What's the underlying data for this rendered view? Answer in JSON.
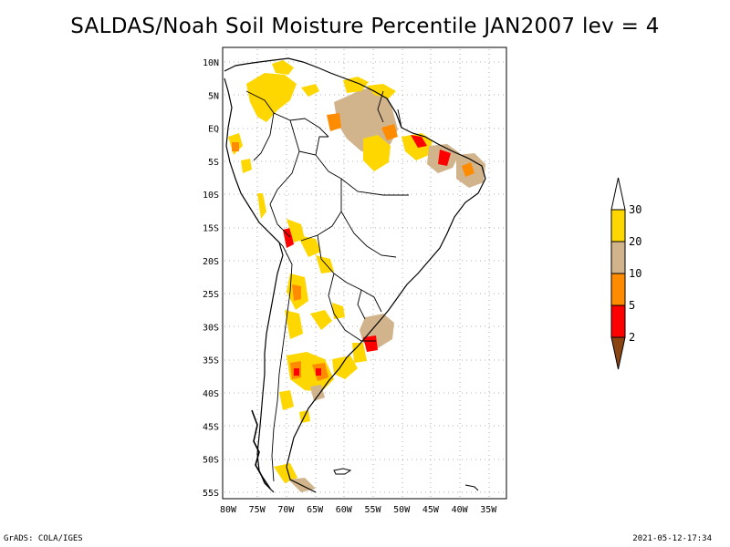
{
  "title": "SALDAS/Noah Soil Moisture Percentile JAN2007 lev = 4",
  "lat_labels": [
    "10N",
    "5N",
    "EQ",
    "5S",
    "10S",
    "15S",
    "20S",
    "25S",
    "30S",
    "35S",
    "40S",
    "45S",
    "50S",
    "55S"
  ],
  "lon_labels": [
    "80W",
    "75W",
    "70W",
    "65W",
    "60W",
    "55W",
    "50W",
    "45W",
    "40W",
    "35W"
  ],
  "legend": {
    "levels": [
      "2",
      "5",
      "10",
      "20",
      "30"
    ],
    "colors": [
      "#8b4513",
      "#ff0000",
      "#ff8c00",
      "#d2b48c",
      "#ffd700",
      "#ffffff"
    ]
  },
  "colors": {
    "yellow": "#ffd700",
    "tan": "#d2b48c",
    "orange": "#ff8c00",
    "red": "#ff0000",
    "brown": "#8b4513"
  },
  "footer": {
    "left": "GrADS: COLA/IGES",
    "right": "2021-05-12-17:34"
  }
}
